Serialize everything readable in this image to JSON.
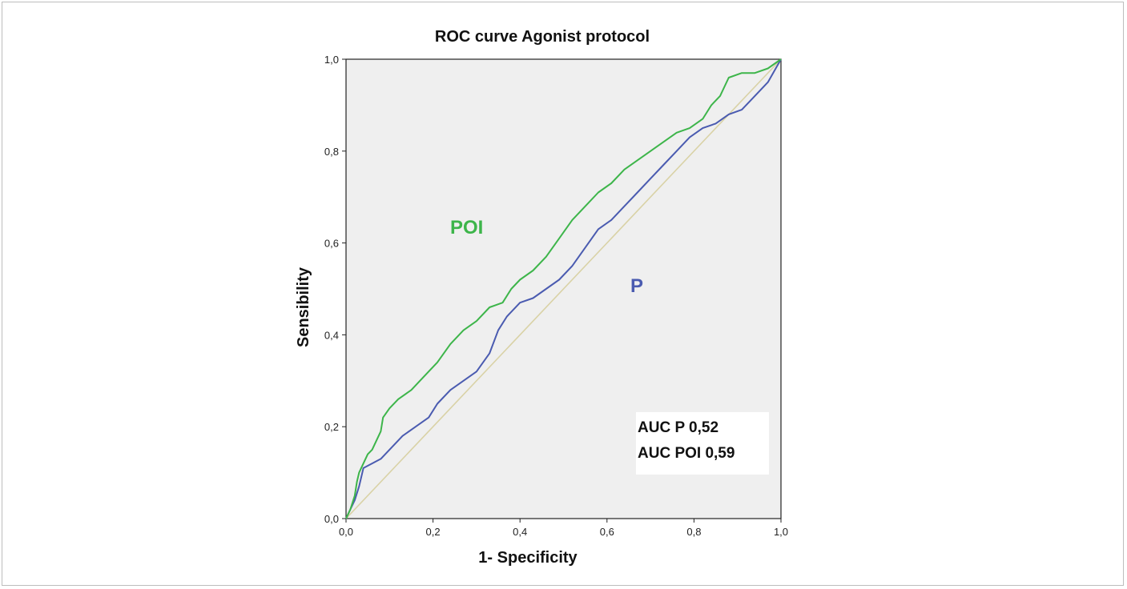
{
  "chart_data": {
    "type": "line",
    "title": "ROC curve Agonist protocol",
    "xlabel": "1- Specificity",
    "ylabel": "Sensibility",
    "xlim": [
      0,
      1
    ],
    "ylim": [
      0,
      1
    ],
    "xticks": [
      "0,0",
      "0,2",
      "0,4",
      "0,6",
      "0,8",
      "1,0"
    ],
    "yticks": [
      "0,0",
      "0,2",
      "0,4",
      "0,6",
      "0,8",
      "1,0"
    ],
    "grid": false,
    "colors": {
      "background": "#efefef",
      "poi": "#3db54a",
      "p": "#4a5bb0",
      "reference": "#d9d2a6"
    },
    "series": [
      {
        "name": "POI",
        "color": "#3db54a",
        "points": [
          [
            0,
            0
          ],
          [
            0.01,
            0.02
          ],
          [
            0.02,
            0.05
          ],
          [
            0.025,
            0.08
          ],
          [
            0.03,
            0.1
          ],
          [
            0.04,
            0.12
          ],
          [
            0.05,
            0.14
          ],
          [
            0.06,
            0.15
          ],
          [
            0.07,
            0.17
          ],
          [
            0.08,
            0.19
          ],
          [
            0.085,
            0.22
          ],
          [
            0.1,
            0.24
          ],
          [
            0.12,
            0.26
          ],
          [
            0.15,
            0.28
          ],
          [
            0.18,
            0.31
          ],
          [
            0.21,
            0.34
          ],
          [
            0.24,
            0.38
          ],
          [
            0.27,
            0.41
          ],
          [
            0.3,
            0.43
          ],
          [
            0.33,
            0.46
          ],
          [
            0.36,
            0.47
          ],
          [
            0.38,
            0.5
          ],
          [
            0.4,
            0.52
          ],
          [
            0.43,
            0.54
          ],
          [
            0.46,
            0.57
          ],
          [
            0.49,
            0.61
          ],
          [
            0.52,
            0.65
          ],
          [
            0.55,
            0.68
          ],
          [
            0.58,
            0.71
          ],
          [
            0.61,
            0.73
          ],
          [
            0.64,
            0.76
          ],
          [
            0.67,
            0.78
          ],
          [
            0.7,
            0.8
          ],
          [
            0.73,
            0.82
          ],
          [
            0.76,
            0.84
          ],
          [
            0.79,
            0.85
          ],
          [
            0.82,
            0.87
          ],
          [
            0.84,
            0.9
          ],
          [
            0.86,
            0.92
          ],
          [
            0.88,
            0.96
          ],
          [
            0.91,
            0.97
          ],
          [
            0.94,
            0.97
          ],
          [
            0.97,
            0.98
          ],
          [
            1.0,
            1.0
          ]
        ]
      },
      {
        "name": "P",
        "color": "#4a5bb0",
        "points": [
          [
            0,
            0
          ],
          [
            0.01,
            0.02
          ],
          [
            0.02,
            0.04
          ],
          [
            0.03,
            0.07
          ],
          [
            0.04,
            0.11
          ],
          [
            0.06,
            0.12
          ],
          [
            0.08,
            0.13
          ],
          [
            0.1,
            0.15
          ],
          [
            0.13,
            0.18
          ],
          [
            0.16,
            0.2
          ],
          [
            0.19,
            0.22
          ],
          [
            0.21,
            0.25
          ],
          [
            0.24,
            0.28
          ],
          [
            0.27,
            0.3
          ],
          [
            0.3,
            0.32
          ],
          [
            0.33,
            0.36
          ],
          [
            0.35,
            0.41
          ],
          [
            0.37,
            0.44
          ],
          [
            0.4,
            0.47
          ],
          [
            0.43,
            0.48
          ],
          [
            0.46,
            0.5
          ],
          [
            0.49,
            0.52
          ],
          [
            0.52,
            0.55
          ],
          [
            0.55,
            0.59
          ],
          [
            0.58,
            0.63
          ],
          [
            0.61,
            0.65
          ],
          [
            0.64,
            0.68
          ],
          [
            0.67,
            0.71
          ],
          [
            0.7,
            0.74
          ],
          [
            0.73,
            0.77
          ],
          [
            0.76,
            0.8
          ],
          [
            0.79,
            0.83
          ],
          [
            0.82,
            0.85
          ],
          [
            0.85,
            0.86
          ],
          [
            0.88,
            0.88
          ],
          [
            0.91,
            0.89
          ],
          [
            0.94,
            0.92
          ],
          [
            0.97,
            0.95
          ],
          [
            1.0,
            1.0
          ]
        ]
      }
    ],
    "reference_line": [
      [
        0,
        0
      ],
      [
        1,
        1
      ]
    ],
    "annotations": {
      "poi_label": "POI",
      "p_label": "P",
      "auc_lines": [
        "AUC P 0,52",
        "AUC POI 0,59"
      ]
    }
  }
}
